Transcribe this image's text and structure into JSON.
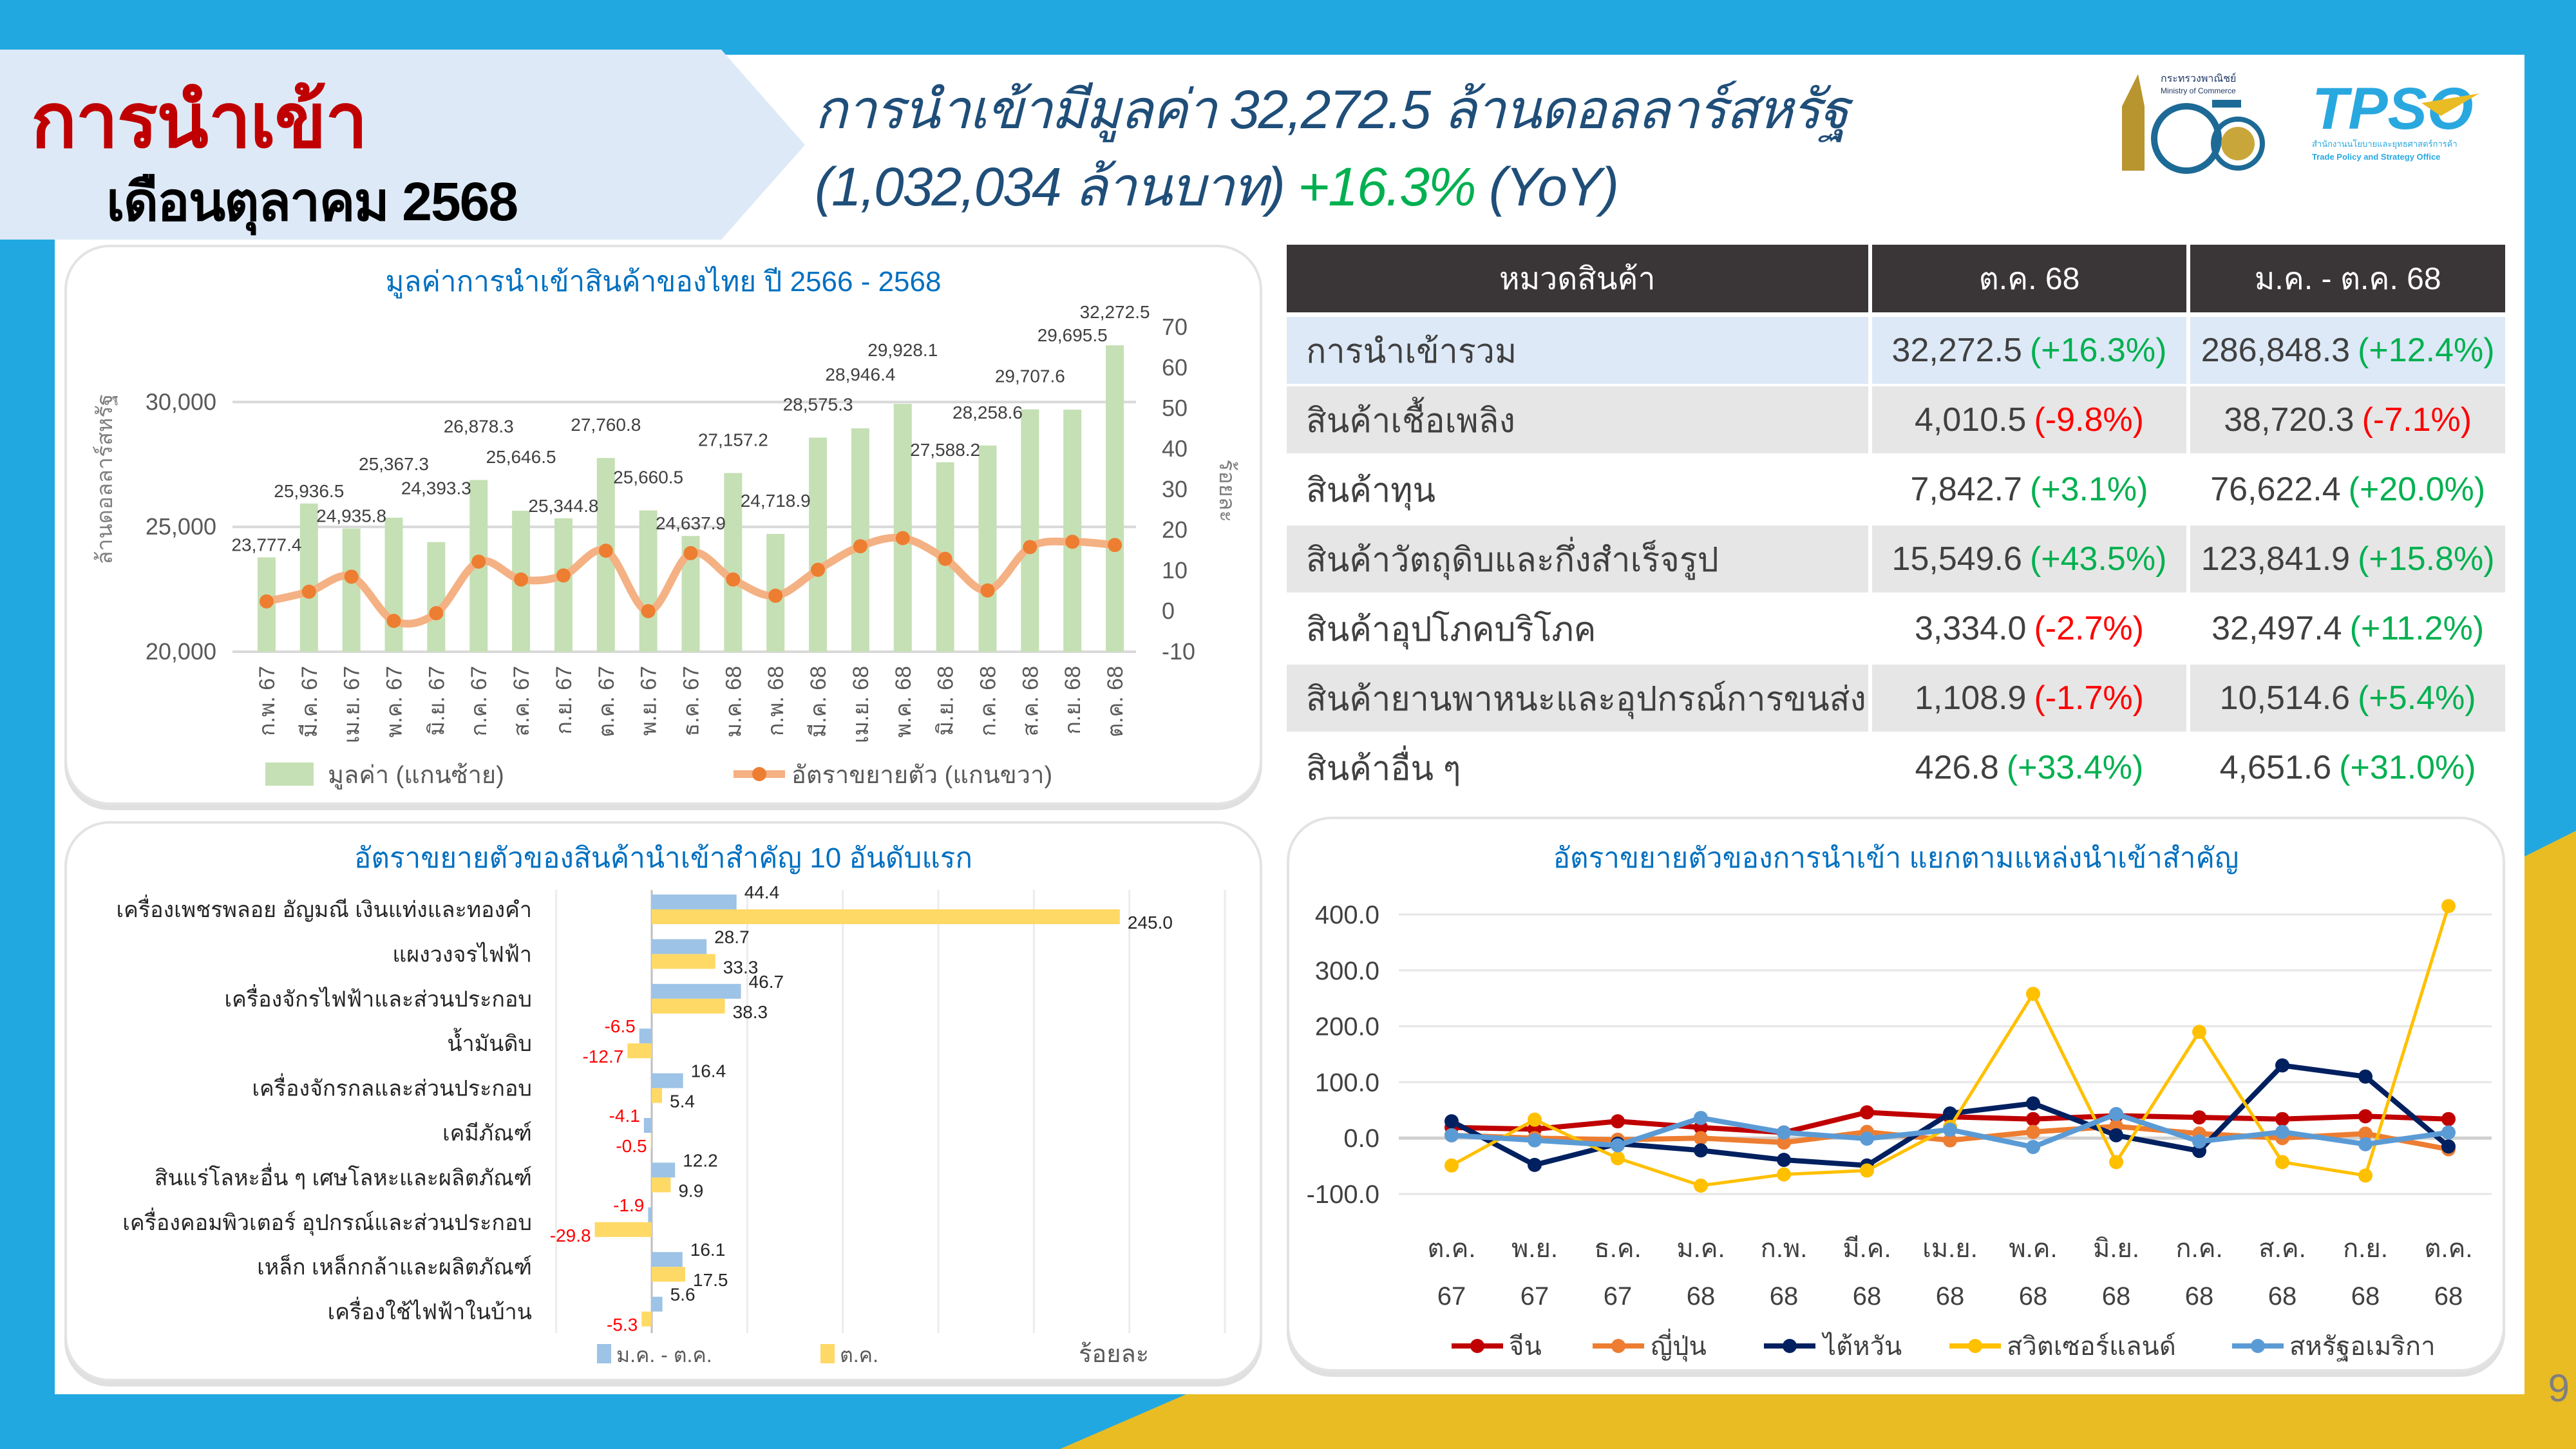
{
  "header": {
    "title": "การนำเข้า",
    "subtitle": "เดือนตุลาคม 2568",
    "headline_line1": "การนำเข้ามีมูลค่า 32,272.5 ล้านดอลลาร์สหรัฐ",
    "headline_line2": "(1,032,034 ล้านบาท)",
    "headline_growth": "+16.3%",
    "headline_suffix": "(YoY)"
  },
  "logos": {
    "ministry": {
      "th": "กระทรวงพาณิชย์",
      "en": "Ministry of Commerce",
      "mark": "105th"
    },
    "tpso": {
      "mark": "TPSO",
      "th": "สำนักงานนโยบายและยุทธศาสตร์การค้า",
      "en": "Trade Policy and Strategy Office"
    }
  },
  "colors": {
    "positive": "#00b050",
    "negative": "#ff0000",
    "title_blue": "#0070c0",
    "table_header": "#3a3536"
  },
  "table": {
    "headers": [
      "หมวดสินค้า",
      "ต.ค. 68",
      "ม.ค. - ต.ค.  68"
    ],
    "rows": [
      {
        "name": "การนำเข้ารวม",
        "oct_value": "32,272.5",
        "oct_growth": "(+16.3%)",
        "ytd_value": "286,848.3",
        "ytd_growth": "(+12.4%)"
      },
      {
        "name": "สินค้าเชื้อเพลิง",
        "oct_value": "4,010.5",
        "oct_growth": "(-9.8%)",
        "ytd_value": "38,720.3",
        "ytd_growth": "(-7.1%)"
      },
      {
        "name": "สินค้าทุน",
        "oct_value": "7,842.7",
        "oct_growth": "(+3.1%)",
        "ytd_value": "76,622.4",
        "ytd_growth": "(+20.0%)"
      },
      {
        "name": "สินค้าวัตถุดิบและกึ่งสำเร็จรูป",
        "oct_value": "15,549.6",
        "oct_growth": "(+43.5%)",
        "ytd_value": "123,841.9",
        "ytd_growth": "(+15.8%)"
      },
      {
        "name": "สินค้าอุปโภคบริโภค",
        "oct_value": "3,334.0",
        "oct_growth": "(-2.7%)",
        "ytd_value": "32,497.4",
        "ytd_growth": "(+11.2%)"
      },
      {
        "name": "สินค้ายานพาหนะและอุปกรณ์การขนส่ง",
        "oct_value": "1,108.9",
        "oct_growth": "(-1.7%)",
        "ytd_value": "10,514.6",
        "ytd_growth": "(+5.4%)"
      },
      {
        "name": "สินค้าอื่น ๆ",
        "oct_value": "426.8",
        "oct_growth": "(+33.4%)",
        "ytd_value": "4,651.6",
        "ytd_growth": "(+31.0%)"
      }
    ]
  },
  "chart_data": [
    {
      "type": "bar+line",
      "title": "มูลค่าการนำเข้าสินค้าของไทย ปี 2566 - 2568",
      "ylabel": "ล้านดอลลาร์สหรัฐ",
      "y2label": "ร้อยละ",
      "categories": [
        "ก.พ. 67",
        "มี.ค. 67",
        "เม.ย. 67",
        "พ.ค. 67",
        "มิ.ย. 67",
        "ก.ค. 67",
        "ส.ค. 67",
        "ก.ย. 67",
        "ต.ค. 67",
        "พ.ย. 67",
        "ธ.ค. 67",
        "ม.ค. 68",
        "ก.พ. 68",
        "มี.ค. 68",
        "เม.ย. 68",
        "พ.ค. 68",
        "มิ.ย. 68",
        "ก.ค. 68",
        "ส.ค. 68",
        "ก.ย. 68",
        "ต.ค. 68"
      ],
      "series": [
        {
          "name": "มูลค่า (แกนซ้าย)",
          "type": "bar",
          "axis": "left",
          "color": "#c5e0b4",
          "values": [
            23777.4,
            25936.5,
            24935.8,
            25367.3,
            24393.3,
            26878.3,
            25646.5,
            25344.8,
            27760.8,
            25660.5,
            24637.9,
            27157.2,
            24718.9,
            28575.3,
            28946.4,
            29928.1,
            27588.2,
            28258.6,
            29707.6,
            29695.5,
            32272.5
          ],
          "labels": [
            "23,777.4",
            "25,936.5",
            "24,935.8",
            "25,367.3",
            "24,393.3",
            "26,878.3",
            "25,646.5",
            "25,344.8",
            "27,760.8",
            "25,660.5",
            "24,637.9",
            "27,157.2",
            "24,718.9",
            "28,575.3",
            "28,946.4",
            "29,928.1",
            "27,588.2",
            "28,258.6",
            "29,707.6",
            "29,695.5",
            "32,272.5"
          ]
        },
        {
          "name": "อัตราขยายตัว (แกนขวา)",
          "type": "line",
          "axis": "right",
          "color": "#f4b183",
          "marker_color": "#ed7d31",
          "values": [
            2.4,
            4.8,
            8.5,
            -2.4,
            -0.5,
            12.2,
            7.8,
            8.8,
            14.9,
            0.0,
            14.3,
            7.8,
            3.8,
            10.2,
            16.0,
            18.0,
            12.9,
            5.1,
            15.8,
            17.1,
            16.3
          ]
        }
      ],
      "ylim": [
        20000,
        33000
      ],
      "yticks": [
        "20,000",
        "25,000",
        "30,000"
      ],
      "yticks_values": [
        20000,
        25000,
        30000
      ],
      "y2lim": [
        -10,
        70
      ],
      "y2ticks": [
        "-10",
        "0",
        "10",
        "20",
        "30",
        "40",
        "50",
        "60",
        "70"
      ],
      "grid": true,
      "legend": "bottom"
    },
    {
      "type": "bar",
      "orientation": "horizontal",
      "title": "อัตราขยายตัวของสินค้านำเข้าสำคัญ 10 อันดับแรก",
      "unit_label": "ร้อยละ",
      "categories": [
        "เครื่องเพชรพลอย อัญมณี เงินแท่งและทองคำ",
        "แผงวงจรไฟฟ้า",
        "เครื่องจักรไฟฟ้าและส่วนประกอบ",
        "น้ำมันดิบ",
        "เครื่องจักรกลและส่วนประกอบ",
        "เคมีภัณฑ์",
        "สินแร่โลหะอื่น ๆ เศษโลหะและผลิตภัณฑ์",
        "เครื่องคอมพิวเตอร์ อุปกรณ์และส่วนประกอบ",
        "เหล็ก เหล็กกล้าและผลิตภัณฑ์",
        "เครื่องใช้ไฟฟ้าในบ้าน"
      ],
      "series": [
        {
          "name": "ม.ค. - ต.ค.",
          "color": "#9dc3e6",
          "values": [
            44.4,
            28.7,
            46.7,
            -6.5,
            16.4,
            -4.1,
            12.2,
            -1.9,
            16.1,
            5.6
          ],
          "labels": [
            "44.4",
            "28.7",
            "46.7",
            "-6.5",
            "16.4",
            "-4.1",
            "12.2",
            "-1.9",
            "16.1",
            "5.6"
          ]
        },
        {
          "name": "ต.ค.",
          "color": "#ffd966",
          "values": [
            245.0,
            33.3,
            38.3,
            -12.7,
            5.4,
            -0.5,
            9.9,
            -29.8,
            17.5,
            -5.3
          ],
          "labels": [
            "245.0",
            "33.3",
            "38.3",
            "-12.7",
            "5.4",
            "-0.5",
            "9.9",
            "-29.8",
            "17.5",
            "-5.3"
          ]
        }
      ],
      "xlim": [
        -50,
        300
      ],
      "grid": true,
      "legend": "bottom"
    },
    {
      "type": "line",
      "title": "อัตราขยายตัวของการนำเข้า แยกตามแหล่งนำเข้าสำคัญ",
      "categories": [
        [
          "ต.ค.",
          "67"
        ],
        [
          "พ.ย.",
          "67"
        ],
        [
          "ธ.ค.",
          "67"
        ],
        [
          "ม.ค.",
          "68"
        ],
        [
          "ก.พ.",
          "68"
        ],
        [
          "มี.ค.",
          "68"
        ],
        [
          "เม.ย.",
          "68"
        ],
        [
          "พ.ค.",
          "68"
        ],
        [
          "มิ.ย.",
          "68"
        ],
        [
          "ก.ค.",
          "68"
        ],
        [
          "ส.ค.",
          "68"
        ],
        [
          "ก.ย.",
          "68"
        ],
        [
          "ต.ค.",
          "68"
        ]
      ],
      "series": [
        {
          "name": "จีน",
          "color": "#c00000",
          "values": [
            19,
            16,
            30,
            19,
            10,
            46,
            38,
            34,
            40,
            37,
            34,
            39,
            34
          ]
        },
        {
          "name": "ญี่ปุ่น",
          "color": "#ed7d31",
          "values": [
            5,
            0,
            -3,
            0,
            -8,
            11,
            -4,
            11,
            21,
            8,
            0,
            8,
            -20
          ]
        },
        {
          "name": "ไต้หวัน",
          "color": "#002060",
          "values": [
            30,
            -48,
            -10,
            -22,
            -39,
            -49,
            44,
            62,
            5,
            -23,
            130,
            110,
            -15
          ]
        },
        {
          "name": "สวิตเซอร์แลนด์",
          "color": "#ffc000",
          "values": [
            -49,
            33,
            -36,
            -85,
            -65,
            -58,
            20,
            258,
            -43,
            190,
            -43,
            -67,
            415
          ]
        },
        {
          "name": "สหรัฐอเมริกา",
          "color": "#5b9bd5",
          "values": [
            5,
            -4,
            -13,
            36,
            10,
            -1,
            15,
            -16,
            43,
            -6,
            11,
            -11,
            10
          ]
        }
      ],
      "ylim": [
        -100,
        400
      ],
      "yticks": [
        "400.0",
        "300.0",
        "200.0",
        "100.0",
        "0.0",
        "-100.0"
      ],
      "yticks_values": [
        400,
        300,
        200,
        100,
        0,
        -100
      ],
      "grid": true,
      "legend": "bottom"
    }
  ],
  "page_number": "9"
}
